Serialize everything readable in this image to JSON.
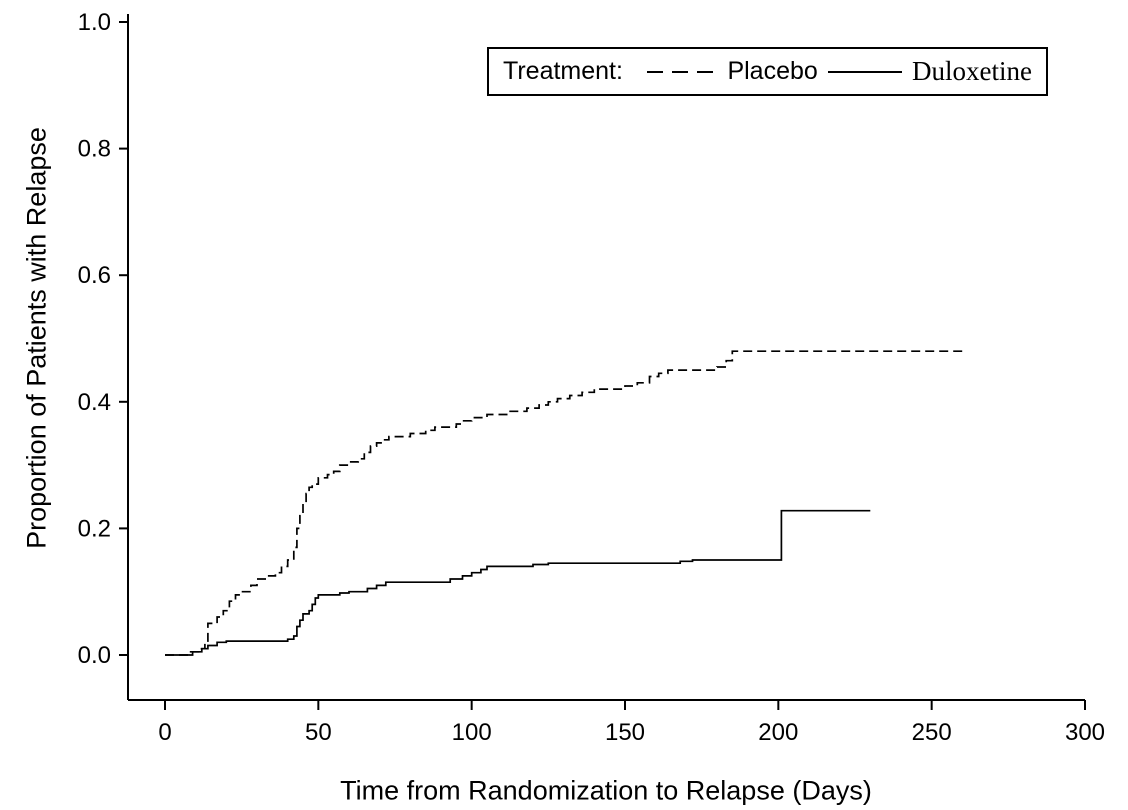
{
  "figure": {
    "background": "#ffffff",
    "line_color": "#000000"
  },
  "chart_data": {
    "type": "line",
    "subtype": "step-kaplan-meier-cumulative-incidence",
    "title": "",
    "xlabel": "Time from Randomization to Relapse (Days)",
    "ylabel": "Proportion of Patients with Relapse",
    "xlim": [
      0,
      300
    ],
    "ylim": [
      0,
      1
    ],
    "xticks": [
      "0",
      "50",
      "100",
      "150",
      "200",
      "250",
      "300"
    ],
    "yticks": [
      "0.0",
      "0.2",
      "0.4",
      "0.6",
      "0.8",
      "1.0"
    ],
    "grid": false,
    "legend": {
      "title": "Treatment:",
      "position": "top-right-inside",
      "entries": [
        {
          "name": "Placebo",
          "line_style": "dashed"
        },
        {
          "name": "Duloxetine",
          "line_style": "solid"
        }
      ]
    },
    "series": [
      {
        "name": "Placebo",
        "line_style": "dashed",
        "points": [
          [
            0,
            0
          ],
          [
            8,
            0.005
          ],
          [
            11,
            0.01
          ],
          [
            13,
            0.02
          ],
          [
            14,
            0.05
          ],
          [
            17,
            0.06
          ],
          [
            19,
            0.07
          ],
          [
            21,
            0.085
          ],
          [
            23,
            0.095
          ],
          [
            25,
            0.1
          ],
          [
            28,
            0.11
          ],
          [
            30,
            0.12
          ],
          [
            33,
            0.125
          ],
          [
            36,
            0.13
          ],
          [
            38,
            0.14
          ],
          [
            40,
            0.15
          ],
          [
            42,
            0.17
          ],
          [
            43,
            0.2
          ],
          [
            44,
            0.22
          ],
          [
            45,
            0.24
          ],
          [
            46,
            0.255
          ],
          [
            47,
            0.265
          ],
          [
            48,
            0.27
          ],
          [
            50,
            0.28
          ],
          [
            53,
            0.285
          ],
          [
            55,
            0.29
          ],
          [
            57,
            0.3
          ],
          [
            60,
            0.305
          ],
          [
            63,
            0.31
          ],
          [
            65,
            0.32
          ],
          [
            67,
            0.33
          ],
          [
            69,
            0.335
          ],
          [
            71,
            0.34
          ],
          [
            73,
            0.345
          ],
          [
            80,
            0.35
          ],
          [
            85,
            0.355
          ],
          [
            88,
            0.36
          ],
          [
            95,
            0.365
          ],
          [
            97,
            0.37
          ],
          [
            100,
            0.375
          ],
          [
            105,
            0.38
          ],
          [
            112,
            0.385
          ],
          [
            118,
            0.39
          ],
          [
            122,
            0.395
          ],
          [
            125,
            0.4
          ],
          [
            128,
            0.405
          ],
          [
            132,
            0.41
          ],
          [
            136,
            0.415
          ],
          [
            140,
            0.42
          ],
          [
            150,
            0.425
          ],
          [
            154,
            0.43
          ],
          [
            158,
            0.44
          ],
          [
            161,
            0.445
          ],
          [
            164,
            0.45
          ],
          [
            180,
            0.455
          ],
          [
            183,
            0.465
          ],
          [
            185,
            0.48
          ],
          [
            260,
            0.48
          ]
        ]
      },
      {
        "name": "Duloxetine",
        "line_style": "solid",
        "points": [
          [
            0,
            0
          ],
          [
            9,
            0.005
          ],
          [
            12,
            0.01
          ],
          [
            14,
            0.015
          ],
          [
            17,
            0.02
          ],
          [
            20,
            0.022
          ],
          [
            40,
            0.025
          ],
          [
            42,
            0.03
          ],
          [
            43,
            0.045
          ],
          [
            44,
            0.055
          ],
          [
            45,
            0.065
          ],
          [
            47,
            0.07
          ],
          [
            48,
            0.08
          ],
          [
            49,
            0.09
          ],
          [
            50,
            0.095
          ],
          [
            57,
            0.098
          ],
          [
            60,
            0.1
          ],
          [
            66,
            0.105
          ],
          [
            69,
            0.11
          ],
          [
            72,
            0.115
          ],
          [
            93,
            0.12
          ],
          [
            97,
            0.125
          ],
          [
            100,
            0.13
          ],
          [
            103,
            0.135
          ],
          [
            105,
            0.14
          ],
          [
            120,
            0.143
          ],
          [
            125,
            0.145
          ],
          [
            168,
            0.148
          ],
          [
            172,
            0.15
          ],
          [
            201,
            0.228
          ],
          [
            230,
            0.228
          ]
        ]
      }
    ]
  }
}
